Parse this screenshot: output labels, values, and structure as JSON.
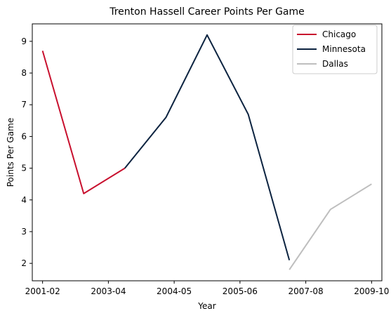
{
  "chart_data": {
    "type": "line",
    "title": "Trenton Hassell Career Points Per Game",
    "xlabel": "Year",
    "ylabel": "Points Per Game",
    "x_ticks": [
      "2001-02",
      "2003-04",
      "2004-05",
      "2005-06",
      "2007-08",
      "2009-10"
    ],
    "y_ticks": [
      2,
      3,
      4,
      5,
      6,
      7,
      8,
      9
    ],
    "ylim": [
      1.45,
      9.55
    ],
    "xlim": [
      -0.25,
      8.25
    ],
    "grid": false,
    "legend_position": "top-right",
    "series": [
      {
        "name": "Chicago",
        "color": "#C8102E",
        "points": [
          [
            0,
            8.7
          ],
          [
            1,
            4.2
          ],
          [
            2,
            5.0
          ]
        ]
      },
      {
        "name": "Minnesota",
        "color": "#0C2340",
        "points": [
          [
            2,
            5.0
          ],
          [
            3,
            6.6
          ],
          [
            4,
            9.2
          ],
          [
            5,
            6.7
          ],
          [
            6,
            2.1
          ]
        ]
      },
      {
        "name": "Dallas",
        "color": "#BEBEBE",
        "points": [
          [
            6,
            1.8
          ],
          [
            7,
            3.7
          ],
          [
            8,
            4.5
          ]
        ]
      }
    ]
  }
}
